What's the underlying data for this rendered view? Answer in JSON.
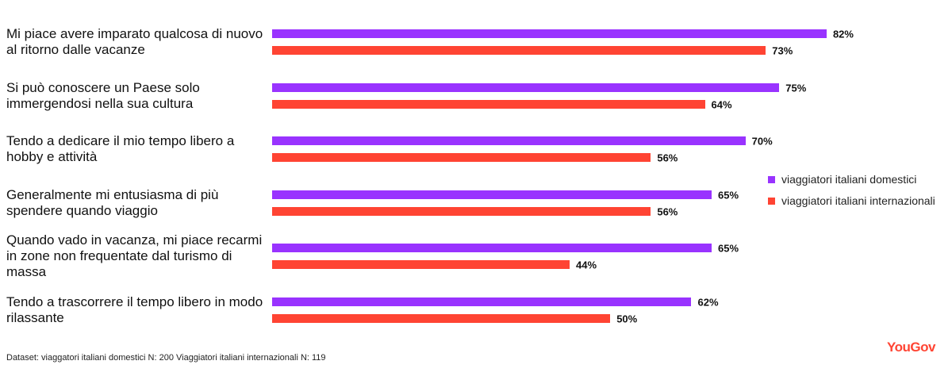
{
  "chart_data": {
    "type": "bar",
    "orientation": "horizontal",
    "categories": [
      "Mi piace avere imparato qualcosa di nuovo al ritorno dalle vacanze",
      "Si può conoscere un Paese solo immergendosi nella sua cultura",
      "Tendo a dedicare il mio tempo libero a hobby e attività",
      "Generalmente mi entusiasma di più spendere quando viaggio",
      "Quando vado in vacanza, mi piace recarmi in zone non frequentate dal turismo di massa",
      "Tendo a trascorrere il tempo libero in modo rilassante"
    ],
    "series": [
      {
        "name": "viaggiatori italiani domestici",
        "color": "#9933ff",
        "values": [
          82,
          75,
          70,
          65,
          65,
          62
        ],
        "value_labels": [
          "82%",
          "75%",
          "70%",
          "65%",
          "65%",
          "62%"
        ]
      },
      {
        "name": "viaggiatori italiani internazionali",
        "color": "#ff4433",
        "values": [
          73,
          64,
          56,
          56,
          44,
          50
        ],
        "value_labels": [
          "73%",
          "64%",
          "56%",
          "56%",
          "44%",
          "50%"
        ]
      }
    ],
    "legend": "right",
    "source": "Dataset: viaggatori italiani domestici N: 200 Viaggiatori italiani internazionali N: 119",
    "logo": "YouGov"
  }
}
